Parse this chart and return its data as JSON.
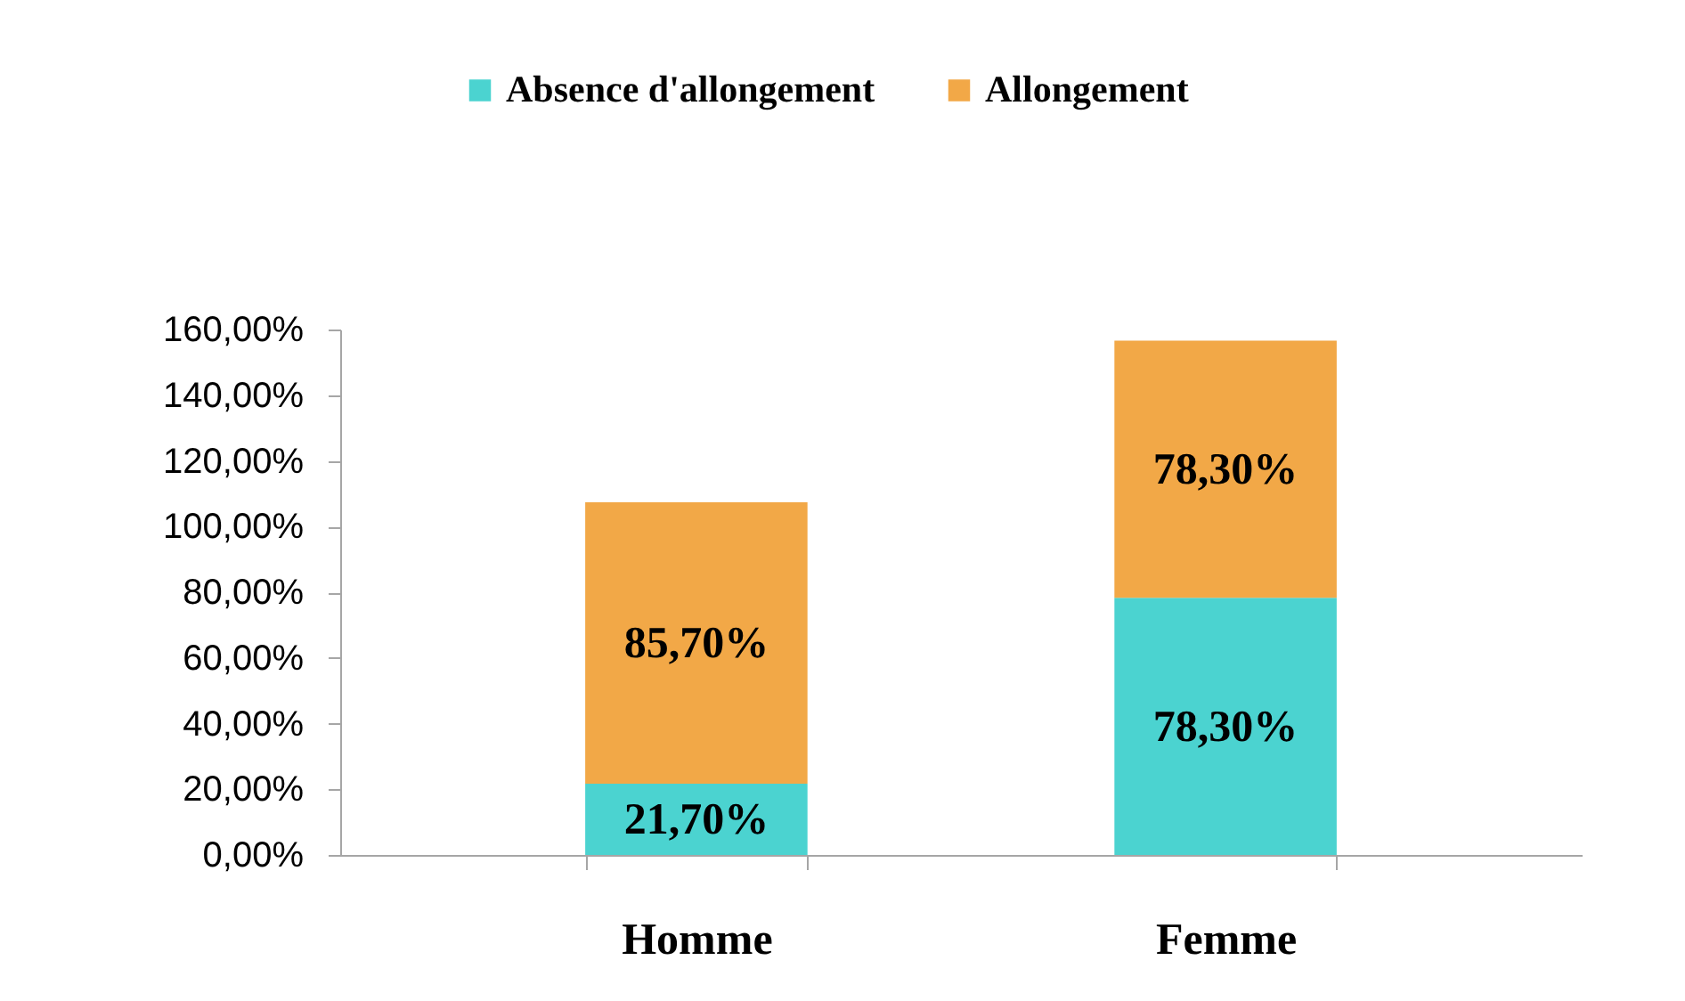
{
  "chart_data": {
    "type": "bar",
    "stacked": true,
    "legend": "top",
    "categories": [
      "Homme",
      "Femme"
    ],
    "series": [
      {
        "name": "Absence d'allongement",
        "color": "#4bd3d0",
        "values": [
          21.7,
          78.3
        ],
        "value_labels": [
          "21,70%",
          "78,30%"
        ]
      },
      {
        "name": "Allongement",
        "color": "#f2a847",
        "values": [
          85.7,
          78.3
        ],
        "value_labels": [
          "85,70%",
          "78,30%"
        ]
      }
    ],
    "ylim": [
      0,
      160
    ],
    "yticks": [
      {
        "value": 0,
        "label": "0,00%"
      },
      {
        "value": 20,
        "label": "20,00%"
      },
      {
        "value": 40,
        "label": "40,00%"
      },
      {
        "value": 60,
        "label": "60,00%"
      },
      {
        "value": 80,
        "label": "80,00%"
      },
      {
        "value": 100,
        "label": "100,00%"
      },
      {
        "value": 120,
        "label": "120,00%"
      },
      {
        "value": 140,
        "label": "140,00%"
      },
      {
        "value": 160,
        "label": "160,00%"
      }
    ]
  }
}
